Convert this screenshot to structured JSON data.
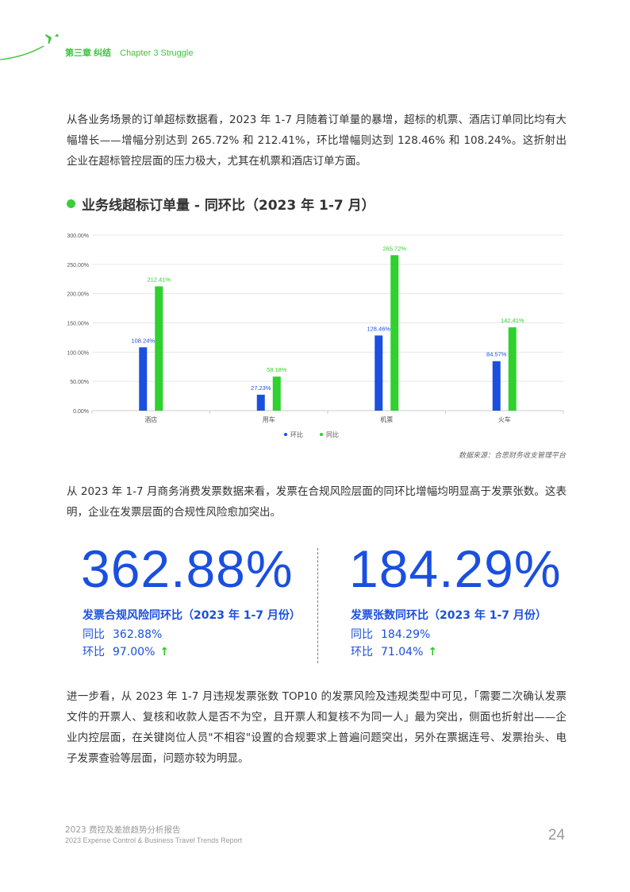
{
  "header": {
    "chapter_cn": "第三章 纠结",
    "chapter_en": "Chapter 3  Struggle",
    "accent_color": "#3cc43c",
    "icon": "airplane-icon"
  },
  "paragraphs": {
    "p1": "从各业务场景的订单超标数据看，2023 年 1-7 月随着订单量的暴增，超标的机票、酒店订单同比均有大幅增长——增幅分别达到 265.72% 和 212.41%，环比增幅则达到 128.46% 和 108.24%。这折射出企业在超标管控层面的压力极大，尤其在机票和酒店订单方面。",
    "p2": "从 2023 年 1-7 月商务消费发票数据来看，发票在合规风险层面的同环比增幅均明显高于发票张数。这表明，企业在发票层面的合规性风险愈加突出。",
    "p3": "进一步看，从 2023 年 1-7 月违规发票张数 TOP10 的发票风险及违规类型中可见，「需要二次确认发票文件的开票人、复核和收款人是否不为空，且开票人和复核不为同一人」最为突出，侧面也折射出——企业内控层面，在关键岗位人员\"不相容\"设置的合规要求上普遍问题突出，另外在票据连号、发票抬头、电子发票查验等层面，问题亦较为明显。"
  },
  "chart_data": {
    "type": "bar",
    "title": "业务线超标订单量 - 同环比（2023 年 1-7 月）",
    "categories": [
      "酒店",
      "用车",
      "机票",
      "火车"
    ],
    "series": [
      {
        "name": "环比",
        "values": [
          108.24,
          27.23,
          128.46,
          84.57
        ],
        "labels": [
          "108.24%",
          "27.23%",
          "128.46%",
          "84.57%"
        ],
        "color": "#1a4fe0"
      },
      {
        "name": "同比",
        "values": [
          212.41,
          58.18,
          265.72,
          142.41
        ],
        "labels": [
          "212.41%",
          "58.18%",
          "265.72%",
          "142.41%"
        ],
        "color": "#2ed12e"
      }
    ],
    "yticks": [
      "0.00%",
      "50.00%",
      "100.00%",
      "150.00%",
      "200.00%",
      "250.00%",
      "300.00%"
    ],
    "ylim": [
      0,
      300
    ],
    "grid": true,
    "legend_position": "bottom"
  },
  "source_note": "数据来源：合思财务收支管理平台",
  "stats": {
    "left": {
      "big": "362.88%",
      "title": "发票合规风险同环比（2023 年 1-7 月份）",
      "yoy_label": "同比",
      "yoy_value": "362.88%",
      "mom_label": "环比",
      "mom_value": "97.00%",
      "trend_icon": "arrow-up-icon"
    },
    "right": {
      "big": "184.29%",
      "title": "发票张数同环比（2023 年 1-7 月份）",
      "yoy_label": "同比",
      "yoy_value": "184.29%",
      "mom_label": "环比",
      "mom_value": "71.04%",
      "trend_icon": "arrow-up-icon"
    },
    "number_color": "#1a4fe0"
  },
  "footer": {
    "title_cn": "2023 费控及差旅趋势分析报告",
    "title_en": "2023 Expense Control & Business Travel Trends Report",
    "page_number": "24"
  }
}
